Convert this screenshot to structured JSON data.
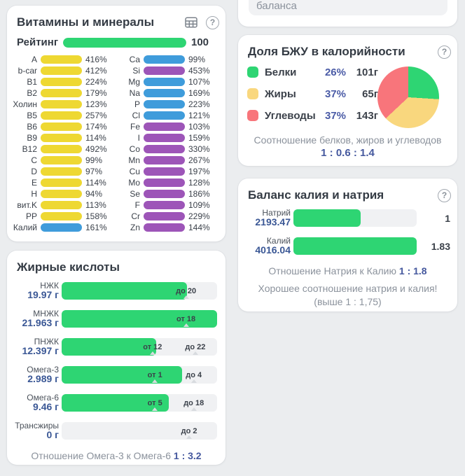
{
  "colors": {
    "yellow": "#eed832",
    "blue": "#3f9cdb",
    "purple": "#9d55b8",
    "green": "#2ed573",
    "track_gray": "#f0f1f3",
    "value_blue": "#3a5795",
    "ratio_blue": "#45589e"
  },
  "top_partial": {
    "text": "баланса"
  },
  "vitamins": {
    "title": "Витамины и минералы",
    "help_icon": "?",
    "rating": {
      "label": "Рейтинг",
      "value": "100",
      "fill": 1
    },
    "columns": [
      [
        {
          "label": "A",
          "value": "416%",
          "color": "yellow"
        },
        {
          "label": "b-car",
          "value": "412%",
          "color": "yellow"
        },
        {
          "label": "B1",
          "value": "224%",
          "color": "yellow"
        },
        {
          "label": "B2",
          "value": "179%",
          "color": "yellow"
        },
        {
          "label": "Холин",
          "value": "123%",
          "color": "yellow"
        },
        {
          "label": "B5",
          "value": "257%",
          "color": "yellow"
        },
        {
          "label": "B6",
          "value": "174%",
          "color": "yellow"
        },
        {
          "label": "B9",
          "value": "114%",
          "color": "yellow"
        },
        {
          "label": "B12",
          "value": "492%",
          "color": "yellow"
        },
        {
          "label": "C",
          "value": "99%",
          "color": "yellow"
        },
        {
          "label": "D",
          "value": "97%",
          "color": "yellow"
        },
        {
          "label": "E",
          "value": "114%",
          "color": "yellow"
        },
        {
          "label": "H",
          "value": "94%",
          "color": "yellow"
        },
        {
          "label": "вит.K",
          "value": "113%",
          "color": "yellow"
        },
        {
          "label": "PP",
          "value": "158%",
          "color": "yellow"
        },
        {
          "label": "Калий",
          "value": "161%",
          "color": "blue"
        }
      ],
      [
        {
          "label": "Ca",
          "value": "99%",
          "color": "blue"
        },
        {
          "label": "Si",
          "value": "453%",
          "color": "purple"
        },
        {
          "label": "Mg",
          "value": "107%",
          "color": "blue"
        },
        {
          "label": "Na",
          "value": "169%",
          "color": "blue"
        },
        {
          "label": "P",
          "value": "223%",
          "color": "blue"
        },
        {
          "label": "Cl",
          "value": "121%",
          "color": "blue"
        },
        {
          "label": "Fe",
          "value": "103%",
          "color": "purple"
        },
        {
          "label": "I",
          "value": "159%",
          "color": "purple"
        },
        {
          "label": "Co",
          "value": "330%",
          "color": "purple"
        },
        {
          "label": "Mn",
          "value": "267%",
          "color": "purple"
        },
        {
          "label": "Cu",
          "value": "197%",
          "color": "purple"
        },
        {
          "label": "Mo",
          "value": "128%",
          "color": "purple"
        },
        {
          "label": "Se",
          "value": "186%",
          "color": "purple"
        },
        {
          "label": "F",
          "value": "109%",
          "color": "purple"
        },
        {
          "label": "Cr",
          "value": "229%",
          "color": "purple"
        },
        {
          "label": "Zn",
          "value": "144%",
          "color": "purple"
        }
      ]
    ]
  },
  "fatty": {
    "title": "Жирные кислоты",
    "rows": [
      {
        "name": "НЖК",
        "value": "19.97 г",
        "fill": 0.805,
        "markers": [
          {
            "label": "до 20",
            "pos": 0.8
          }
        ]
      },
      {
        "name": "МНЖК",
        "value": "21.963 г",
        "fill": 1,
        "markers": [
          {
            "label": "от 18",
            "pos": 0.8
          }
        ]
      },
      {
        "name": "ПНЖК",
        "value": "12.397 г",
        "fill": 0.61,
        "markers": [
          {
            "label": "от 12",
            "pos": 0.585
          },
          {
            "label": "до 22",
            "pos": 0.86
          }
        ]
      },
      {
        "name": "Омега-3",
        "value": "2.989 г",
        "fill": 0.775,
        "markers": [
          {
            "label": "от 1",
            "pos": 0.6
          },
          {
            "label": "до 4",
            "pos": 0.85
          }
        ]
      },
      {
        "name": "Омега-6",
        "value": "9.46 г",
        "fill": 0.69,
        "markers": [
          {
            "label": "от 5",
            "pos": 0.6
          },
          {
            "label": "до 18",
            "pos": 0.85
          }
        ]
      },
      {
        "name": "Трансжиры",
        "value": "0 г",
        "fill": 0,
        "markers": [
          {
            "label": "до 2",
            "pos": 0.82
          }
        ]
      }
    ],
    "footer_label": "Отношение Омега-3 к Омега-6",
    "footer_value": "1 : 3.2"
  },
  "bju": {
    "title": "Доля БЖУ в калорийности",
    "help_icon": "?",
    "legend": [
      {
        "name": "Белки",
        "pct": "26%",
        "pct_value": 26,
        "grams": "101г",
        "color": "#2ed573"
      },
      {
        "name": "Жиры",
        "pct": "37%",
        "pct_value": 37,
        "grams": "65г",
        "color": "#f9d77e"
      },
      {
        "name": "Углеводы",
        "pct": "37%",
        "pct_value": 37,
        "grams": "143г",
        "color": "#f8757b"
      }
    ],
    "footer_label": "Соотношение белков, жиров и углеводов",
    "footer_value": "1 : 0.6 : 1.4"
  },
  "balance": {
    "title": "Баланс калия и натрия",
    "help_icon": "?",
    "rows": [
      {
        "name": "Натрий",
        "value": "2193.47",
        "fill": 0.545,
        "right": "1"
      },
      {
        "name": "Калий",
        "value": "4016.04",
        "fill": 1,
        "right": "1.83"
      }
    ],
    "footer_label": "Отношение Натрия к Калию",
    "footer_value": "1 : 1.8",
    "note": "Хорошее соотношение натрия и калия! (выше 1 : 1,75)"
  },
  "chart_data": {
    "type": "pie",
    "title": "Доля БЖУ в калорийности",
    "labels": [
      "Белки",
      "Жиры",
      "Углеводы"
    ],
    "values": [
      26,
      37,
      37
    ],
    "grams": [
      101,
      65,
      143
    ],
    "colors": [
      "#2ed573",
      "#f9d77e",
      "#f8757b"
    ],
    "legend_position": "left",
    "start": "12-oclock-clockwise"
  }
}
